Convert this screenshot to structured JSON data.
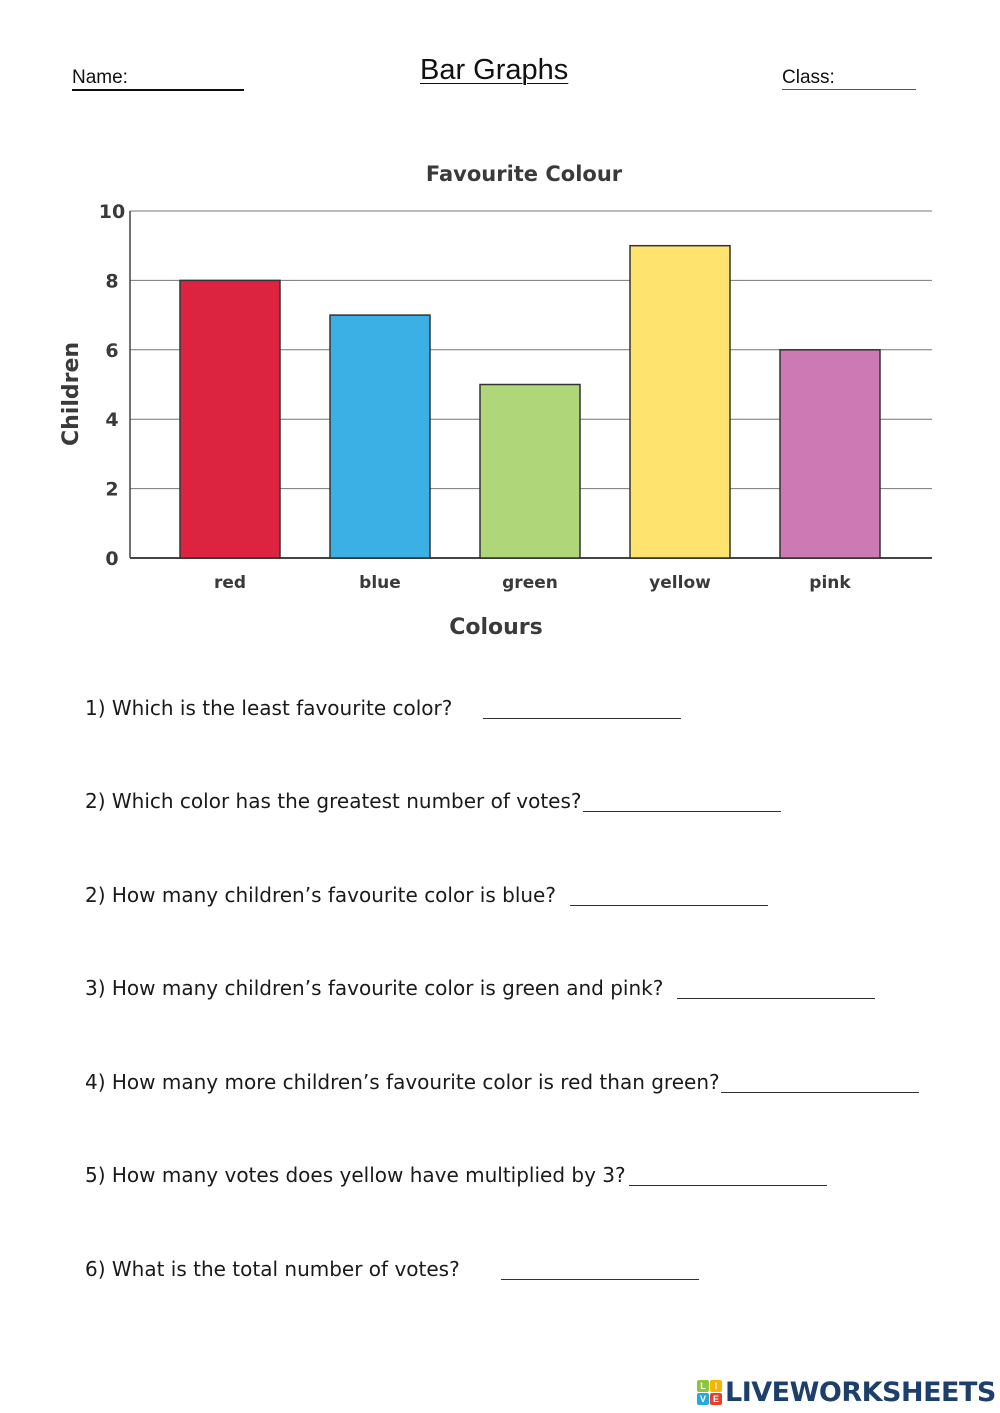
{
  "header": {
    "name_label": "Name:",
    "title": "Bar Graphs",
    "class_label": "Class:"
  },
  "chart_data": {
    "type": "bar",
    "title": "Favourite Colour",
    "xlabel": "Colours",
    "ylabel": "Children",
    "categories": [
      "red",
      "blue",
      "green",
      "yellow",
      "pink"
    ],
    "values": [
      8,
      7,
      5,
      9,
      6
    ],
    "colors": [
      "#dc2440",
      "#3bb0e4",
      "#afd77a",
      "#fee46f",
      "#cd79b3"
    ],
    "ylim": [
      0,
      10
    ],
    "yticks": [
      0,
      2,
      4,
      6,
      8,
      10
    ],
    "grid": true
  },
  "questions": [
    "1) Which is the least favourite color?",
    "2) Which color has the greatest number of votes?",
    "2) How many children’s favourite color is blue?",
    "3) How many children’s favourite color is green and pink?",
    "4) How many more children’s favourite color is red than green?",
    "5) How many votes does yellow have multiplied by 3?",
    "6) What is the total number of votes?"
  ],
  "footer": {
    "logo_text": "LIVEWORKSHEETS",
    "logo_letters": [
      "L",
      "I",
      "V",
      "E"
    ]
  }
}
